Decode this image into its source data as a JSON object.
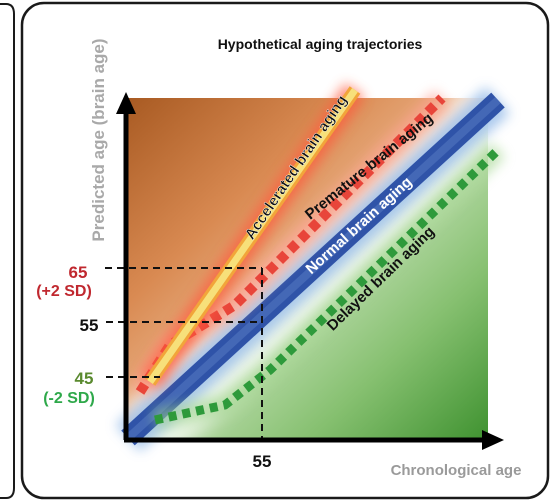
{
  "title": "Hypothetical aging trajectories",
  "y_axis_label": "Predicted age (brain age)",
  "x_axis_label": "Chronological age",
  "x_tick": "55",
  "y_ticks": [
    {
      "value": "65",
      "note": "(+2 SD)"
    },
    {
      "value": "55",
      "note": ""
    },
    {
      "value": "45",
      "note": "(-2 SD)"
    }
  ],
  "trajectories": {
    "accelerated": "Accelerated brain aging",
    "premature": "Premature brain aging",
    "normal": "Normal brain aging",
    "delayed": "Delayed brain aging"
  },
  "colors": {
    "upper_region": "#b5612a",
    "lower_region": "#4e9e3c",
    "accelerated": "#f7e07a",
    "accelerated_glow": "#ff5a3c",
    "premature": "#e8453a",
    "normal": "#2f53a8",
    "normal_glow": "#9cc0ea",
    "delayed": "#2e9a3b",
    "tick_65": "#c0282f",
    "tick_45": "#5a8a2f",
    "sd_minus": "#2ea84a",
    "x_axis_label": "#9a9a9a",
    "y_axis_label": "#a9a9a9"
  }
}
